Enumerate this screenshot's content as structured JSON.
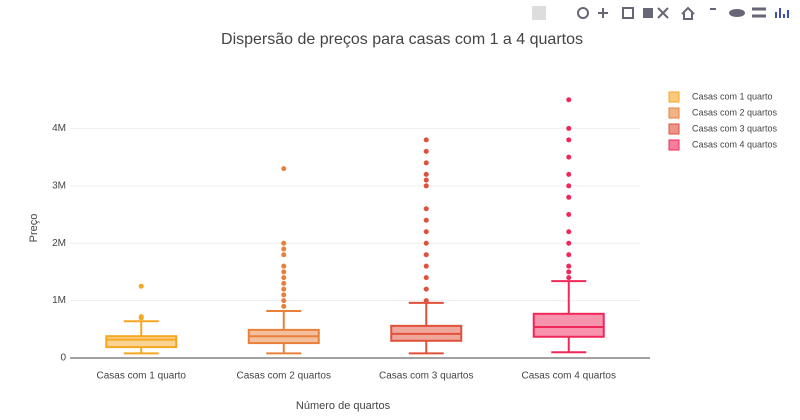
{
  "chart_data": {
    "type": "box",
    "title": "Dispersão de preços para casas com 1 a 4 quartos",
    "x_label": "Número de quartos",
    "y_label": "Preço",
    "categories": [
      "Casas com 1 quarto",
      "Casas com 2 quartos",
      "Casas com 3 quartos",
      "Casas com 4 quartos"
    ],
    "ylim": [
      0,
      4600000
    ],
    "yticks": [
      0,
      {
        "value": 1000000,
        "label": "1M"
      },
      {
        "value": 2000000,
        "label": "2M"
      },
      {
        "value": 3000000,
        "label": "3M"
      },
      {
        "value": 4000000,
        "label": "4M"
      }
    ],
    "legend": "top-right",
    "series": [
      {
        "name": "Casas com 1 quarto",
        "color": "#f5a623",
        "min": 80000,
        "q1": 190000,
        "median": 320000,
        "q3": 380000,
        "max": 640000,
        "outliers": [
          700000,
          720000,
          1250000
        ]
      },
      {
        "name": "Casas com 2 quartos",
        "color": "#e8803a",
        "min": 80000,
        "q1": 260000,
        "median": 380000,
        "q3": 490000,
        "max": 820000,
        "outliers": [
          900000,
          1000000,
          1100000,
          1200000,
          1300000,
          1400000,
          1500000,
          1600000,
          1800000,
          1900000,
          2000000,
          3300000
        ]
      },
      {
        "name": "Casas com 3 quartos",
        "color": "#e0503a",
        "min": 80000,
        "q1": 300000,
        "median": 420000,
        "q3": 560000,
        "max": 960000,
        "outliers": [
          1000000,
          1200000,
          1400000,
          1600000,
          1800000,
          2000000,
          2200000,
          2400000,
          2600000,
          3000000,
          3100000,
          3200000,
          3400000,
          3600000,
          3800000
        ]
      },
      {
        "name": "Casas com 4 quartos",
        "color": "#f0285a",
        "min": 100000,
        "q1": 370000,
        "median": 540000,
        "q3": 770000,
        "max": 1340000,
        "outliers": [
          1400000,
          1500000,
          1600000,
          1800000,
          2000000,
          2200000,
          2500000,
          2800000,
          3000000,
          3200000,
          3500000,
          3800000,
          4000000,
          4500000
        ]
      }
    ]
  }
}
